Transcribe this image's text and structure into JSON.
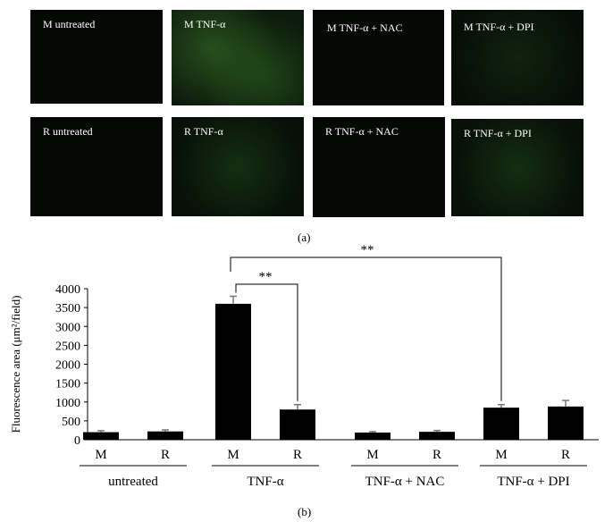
{
  "panel_a": {
    "images": [
      {
        "label": "M untreated",
        "tone": "g0"
      },
      {
        "label": "M TNF-α",
        "tone": "g1"
      },
      {
        "label": "M TNF-α + NAC",
        "tone": "g0"
      },
      {
        "label": "M TNF-α + DPI",
        "tone": "g3"
      },
      {
        "label": "R untreated",
        "tone": "g0"
      },
      {
        "label": "R TNF-α",
        "tone": "g2"
      },
      {
        "label": "R TNF-α + NAC",
        "tone": "g0"
      },
      {
        "label": "R TNF-α + DPI",
        "tone": "g2"
      }
    ],
    "caption": "(a)"
  },
  "panel_b": {
    "caption": "(b)"
  },
  "chart_data": {
    "type": "bar",
    "ylabel": "Fluorescence area (μm²/field)",
    "ylim": [
      0,
      4000
    ],
    "yticks": [
      "0",
      "500",
      "1000",
      "1500",
      "2000",
      "2500",
      "3000",
      "3500",
      "4000"
    ],
    "groups": [
      "untreated",
      "TNF-α",
      "TNF-α + NAC",
      "TNF-α + DPI"
    ],
    "sub_categories": [
      "M",
      "R"
    ],
    "values": [
      [
        200,
        220
      ],
      [
        3600,
        800
      ],
      [
        190,
        210
      ],
      [
        850,
        880
      ]
    ],
    "errors": [
      [
        40,
        40
      ],
      [
        200,
        130
      ],
      [
        25,
        35
      ],
      [
        80,
        160
      ]
    ],
    "significance": [
      {
        "from": [
          1,
          0
        ],
        "to": [
          1,
          1
        ],
        "label": "**"
      },
      {
        "from": [
          1,
          0
        ],
        "to": [
          3,
          0
        ],
        "label": "**"
      }
    ],
    "bar_color": "#000000"
  }
}
